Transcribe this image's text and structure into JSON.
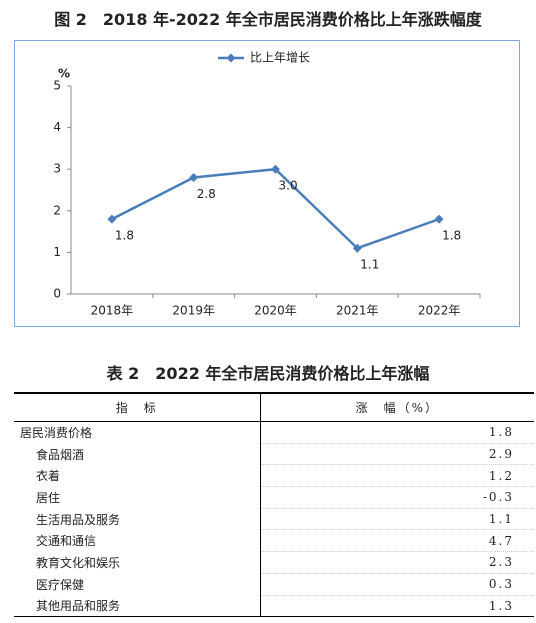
{
  "chart_data": {
    "type": "line",
    "title": "图 2　2018 年-2022 年全市居民消费价格比上年涨跌幅度",
    "y_unit": "%",
    "categories": [
      "2018年",
      "2019年",
      "2020年",
      "2021年",
      "2022年"
    ],
    "series": [
      {
        "name": "比上年增长",
        "color": "#4a7ebb",
        "values": [
          1.8,
          2.8,
          3.0,
          1.1,
          1.8
        ],
        "value_labels": [
          "1.8",
          "2.8",
          "3.0",
          "1.1",
          "1.8"
        ]
      }
    ],
    "ylim": [
      0,
      5
    ],
    "yticks": [
      0,
      1,
      2,
      3,
      4,
      5
    ],
    "grid": false,
    "legend": "top"
  },
  "table": {
    "title": "表 2　2022 年全市居民消费价格比上年涨幅",
    "header": [
      "指　标",
      "涨　幅（%）"
    ],
    "rows": [
      [
        "居民消费价格",
        "1.8"
      ],
      [
        "食品烟酒",
        "2.9"
      ],
      [
        "衣着",
        "1.2"
      ],
      [
        "居住",
        "-0.3"
      ],
      [
        "生活用品及服务",
        "1.1"
      ],
      [
        "交通和通信",
        "4.7"
      ],
      [
        "教育文化和娱乐",
        "2.3"
      ],
      [
        "医疗保健",
        "0.3"
      ],
      [
        "其他用品和服务",
        "1.3"
      ]
    ]
  }
}
